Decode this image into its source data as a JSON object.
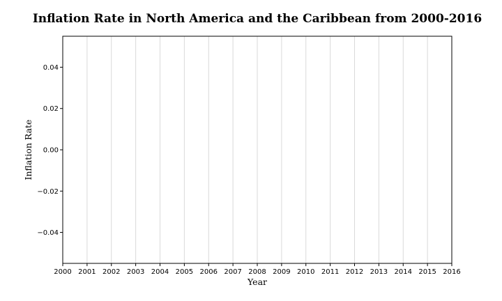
{
  "chart_data": {
    "type": "line",
    "title": "Inflation Rate in North America and the Caribbean from 2000-2016",
    "xlabel": "Year",
    "ylabel": "Inflation Rate",
    "xlim": [
      2000,
      2016
    ],
    "ylim": [
      -0.055,
      0.055
    ],
    "x_ticks": [
      "2000",
      "2001",
      "2002",
      "2003",
      "2004",
      "2005",
      "2006",
      "2007",
      "2008",
      "2009",
      "2010",
      "2011",
      "2012",
      "2013",
      "2014",
      "2015",
      "2016"
    ],
    "y_ticks": [
      {
        "value": 0.04,
        "label": "0.04"
      },
      {
        "value": 0.02,
        "label": "0.02"
      },
      {
        "value": 0.0,
        "label": "0.00"
      },
      {
        "value": -0.02,
        "label": "−0.02"
      },
      {
        "value": -0.04,
        "label": "−0.04"
      }
    ],
    "grid": "vertical",
    "series": []
  }
}
